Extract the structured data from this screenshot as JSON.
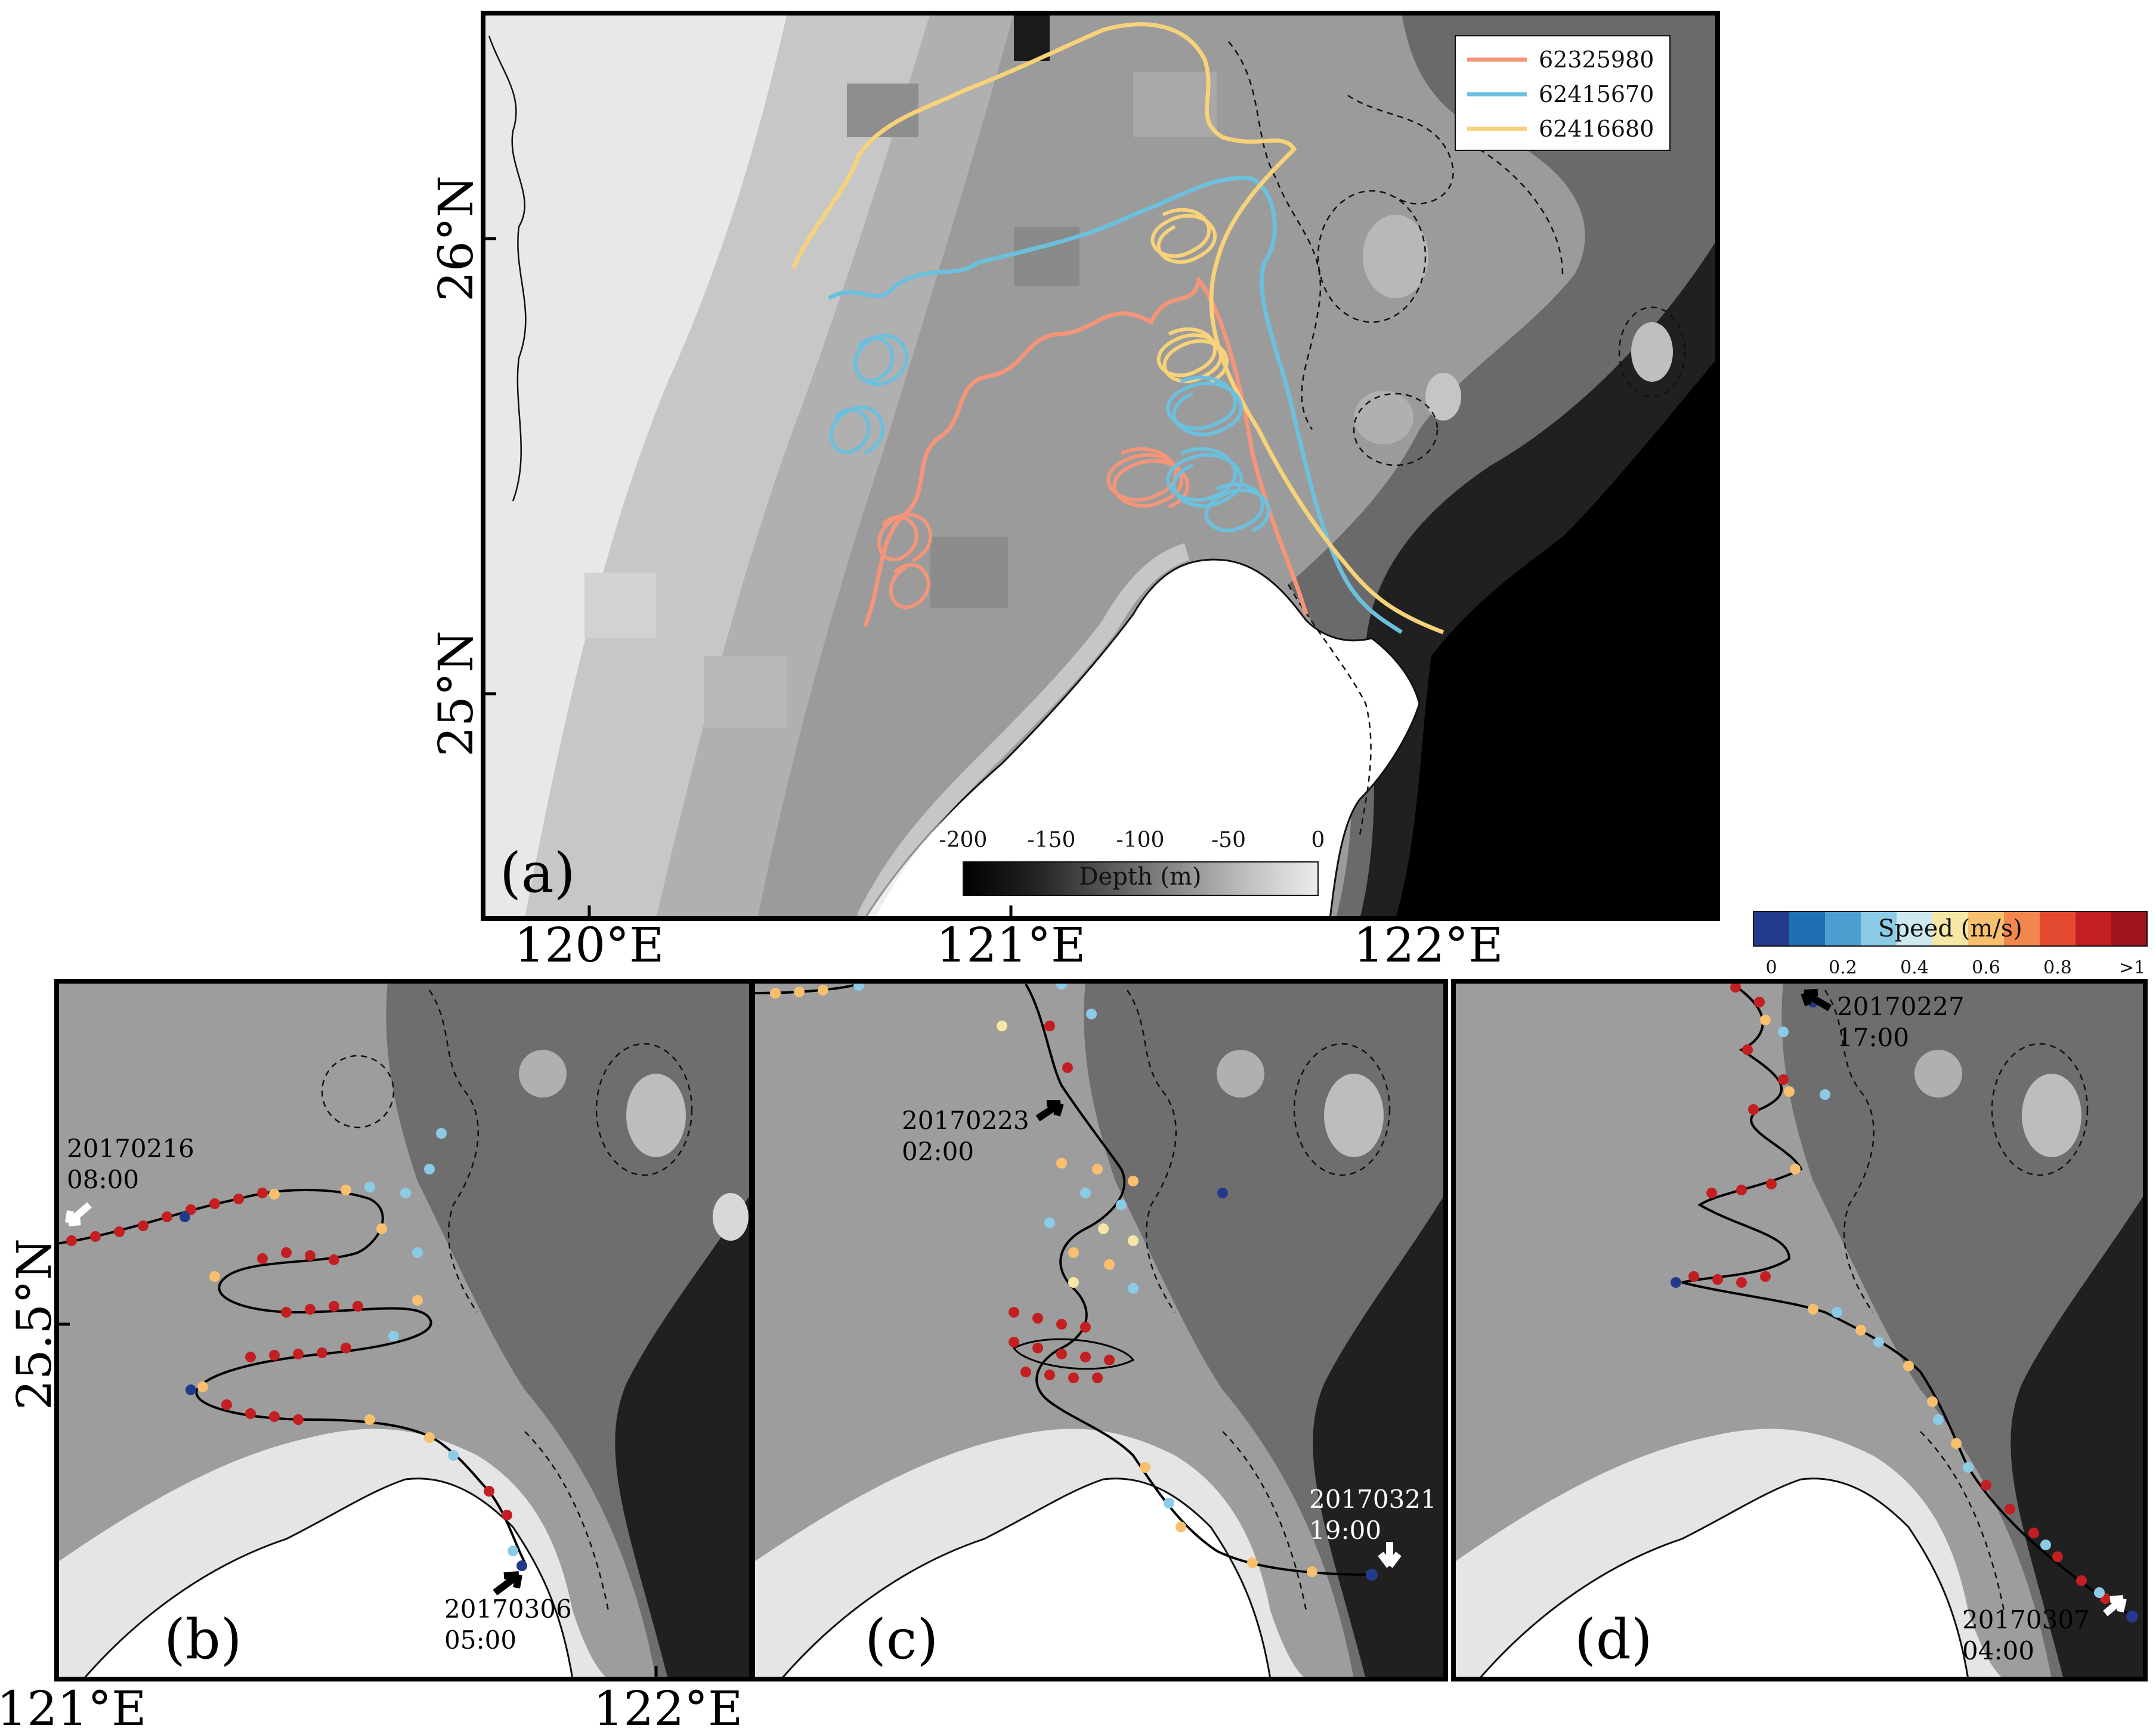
{
  "panels": {
    "a": {
      "label": "(a)",
      "lat_ticks": [
        "26°N",
        "25°N"
      ],
      "lon_ticks": [
        "120°E",
        "121°E",
        "122°E"
      ],
      "legend": [
        {
          "id": "62325980",
          "color": "#f4957a"
        },
        {
          "id": "62415670",
          "color": "#6cc0dd"
        },
        {
          "id": "62416680",
          "color": "#f7d27a"
        }
      ],
      "depth_bar": {
        "title": "Depth (m)",
        "ticks": [
          "-200",
          "-150",
          "-100",
          "-50",
          "0"
        ]
      }
    },
    "b": {
      "label": "(b)",
      "lat_tick": "25.5°N",
      "lon_ticks": [
        "121°E",
        "122°E"
      ],
      "start": {
        "date": "20170216",
        "time": "08:00"
      },
      "end": {
        "date": "20170306",
        "time": "05:00"
      }
    },
    "c": {
      "label": "(c)",
      "start": {
        "date": "20170223",
        "time": "02:00"
      },
      "end": {
        "date": "20170321",
        "time": "19:00"
      }
    },
    "d": {
      "label": "(d)",
      "start": {
        "date": "20170227",
        "time": "17:00"
      },
      "end": {
        "date": "20170307",
        "time": "04:00"
      }
    }
  },
  "speed_bar": {
    "title": "Speed (m/s)",
    "ticks": [
      "0",
      "0.2",
      "0.4",
      "0.6",
      "0.8",
      ">1"
    ],
    "colors": [
      "#233a8c",
      "#1f6fb5",
      "#4c9fd0",
      "#8ccbe6",
      "#cde8ef",
      "#f6e7a6",
      "#f8c06e",
      "#f2874d",
      "#e34a2f",
      "#c31f22",
      "#a0141b"
    ]
  }
}
